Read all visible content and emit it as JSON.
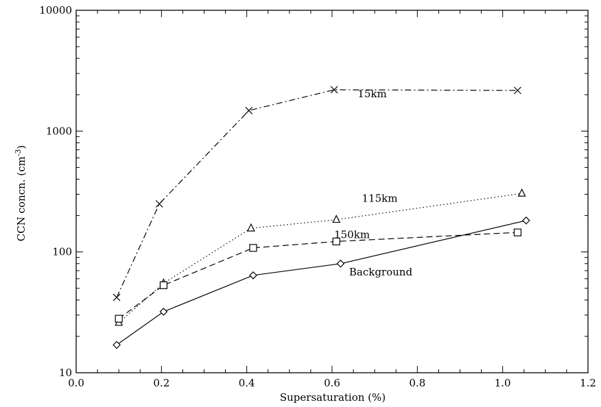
{
  "chart_data": {
    "type": "line",
    "xlabel": "Supersaturation (%)",
    "ylabel_main": "CCN concn. (cm",
    "ylabel_sup": "-3",
    "ylabel_close": ")",
    "xlim": [
      0.0,
      1.2
    ],
    "ylim": [
      10,
      10000
    ],
    "yscale": "log",
    "grid": false,
    "x_ticks": [
      "0.0",
      "0.2",
      "0.4",
      "0.6",
      "0.8",
      "1.0",
      "1.2"
    ],
    "y_ticks": [
      "10",
      "100",
      "1000",
      "10000"
    ],
    "series": [
      {
        "name": "15km",
        "marker": "x",
        "linestyle": "dashdot",
        "points": [
          [
            0.095,
            42
          ],
          [
            0.195,
            250
          ],
          [
            0.405,
            1480
          ],
          [
            0.605,
            2200
          ],
          [
            1.035,
            2170
          ]
        ]
      },
      {
        "name": "115km",
        "marker": "triangle",
        "linestyle": "dotted",
        "points": [
          [
            0.1,
            26
          ],
          [
            0.205,
            55
          ],
          [
            0.41,
            157
          ],
          [
            0.61,
            185
          ],
          [
            1.045,
            305
          ]
        ]
      },
      {
        "name": "150km",
        "marker": "square",
        "linestyle": "dashed",
        "points": [
          [
            0.1,
            28
          ],
          [
            0.205,
            53
          ],
          [
            0.415,
            108
          ],
          [
            0.61,
            122
          ],
          [
            1.035,
            145
          ]
        ]
      },
      {
        "name": "Background",
        "marker": "diamond",
        "linestyle": "solid",
        "points": [
          [
            0.095,
            17
          ],
          [
            0.205,
            32
          ],
          [
            0.415,
            64
          ],
          [
            0.62,
            80
          ],
          [
            1.055,
            182
          ]
        ]
      }
    ]
  }
}
